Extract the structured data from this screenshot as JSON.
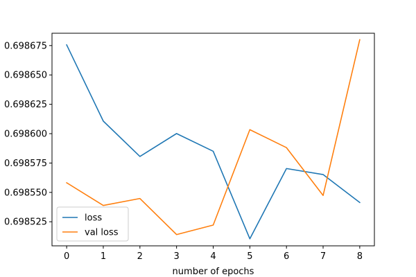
{
  "chart_data": {
    "type": "line",
    "title": "",
    "xlabel": "number of epochs",
    "ylabel": "",
    "x": [
      0,
      1,
      2,
      3,
      4,
      5,
      6,
      7,
      8
    ],
    "xlim": [
      -0.4,
      8.4
    ],
    "ylim": [
      0.6985045,
      0.6986855
    ],
    "xticks": [
      0,
      1,
      2,
      3,
      4,
      5,
      6,
      7,
      8
    ],
    "yticks": [
      0.698525,
      0.69855,
      0.698575,
      0.6986,
      0.698625,
      0.69865,
      0.698675
    ],
    "ytick_labels": [
      "0.698525",
      "0.698550",
      "0.698575",
      "0.698600",
      "0.698625",
      "0.698650",
      "0.698675"
    ],
    "grid": false,
    "legend_position": "lower-left",
    "series": [
      {
        "name": "loss",
        "color": "#1f77b4",
        "values": [
          0.6986756,
          0.6986107,
          0.6985806,
          0.6986001,
          0.698585,
          0.6985105,
          0.6985703,
          0.6985652,
          0.6985414
        ]
      },
      {
        "name": "val loss",
        "color": "#ff7f0e",
        "values": [
          0.6985582,
          0.6985389,
          0.6985448,
          0.6985141,
          0.6985222,
          0.6986034,
          0.6985881,
          0.6985474,
          0.69868
        ]
      }
    ]
  }
}
